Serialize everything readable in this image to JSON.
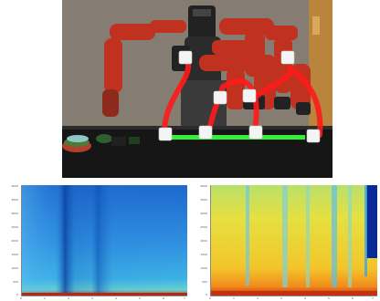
{
  "photo": {
    "alt": "",
    "colors": {
      "wall": "#8a8276",
      "door": "#b9853d",
      "robot_red": "#c0321f",
      "robot_dark": "#2b2b2b",
      "table": "#1a1a1a",
      "trajectory": "#ff1a1a",
      "guide_line": "#35f03a",
      "cup": "#f4f4f4"
    }
  },
  "heatmaps": {
    "left": {
      "colormap": "blue-dominant"
    },
    "right": {
      "colormap": "yellow-dominant"
    }
  },
  "axes": {
    "left_y_ticks": [
      "4000",
      "3500",
      "3000",
      "2500",
      "2000",
      "1500",
      "1000",
      "500",
      "0"
    ],
    "right_y_ticks": [
      "4000",
      "3500",
      "3000",
      "2500",
      "2000",
      "1500",
      "1000",
      "500",
      "0"
    ],
    "left_x_ticks": [
      "0",
      "1",
      "2",
      "3",
      "4",
      "5",
      "6",
      "7"
    ],
    "right_x_ticks": [
      "0",
      "1",
      "2",
      "3",
      "4",
      "5",
      "6",
      "7"
    ]
  }
}
